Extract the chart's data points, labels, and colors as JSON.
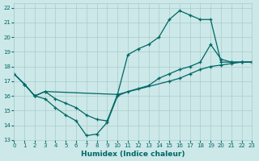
{
  "xlabel": "Humidex (Indice chaleur)",
  "bg_color": "#cce8e8",
  "grid_color": "#aacccc",
  "line_color": "#006666",
  "xlim": [
    0,
    23
  ],
  "ylim": [
    13,
    22.3
  ],
  "xticks": [
    0,
    1,
    2,
    3,
    4,
    5,
    6,
    7,
    8,
    9,
    10,
    11,
    12,
    13,
    14,
    15,
    16,
    17,
    18,
    19,
    20,
    21,
    22,
    23
  ],
  "yticks": [
    13,
    14,
    15,
    16,
    17,
    18,
    19,
    20,
    21,
    22
  ],
  "series": [
    {
      "x": [
        0,
        1,
        2,
        3,
        4,
        5,
        6,
        7,
        8,
        9,
        10,
        11,
        12,
        13,
        14,
        15,
        16,
        17,
        18,
        19,
        20,
        21,
        22,
        23
      ],
      "y": [
        17.5,
        16.8,
        16.0,
        15.8,
        15.2,
        14.7,
        14.3,
        13.3,
        13.4,
        14.2,
        16.0,
        16.3,
        16.5,
        16.7,
        17.2,
        17.5,
        17.8,
        18.0,
        18.3,
        19.5,
        18.5,
        18.3,
        18.3,
        18.3
      ]
    },
    {
      "x": [
        0,
        1,
        2,
        3,
        4,
        5,
        6,
        7,
        8,
        9,
        10,
        11,
        12,
        13,
        14,
        15,
        16,
        17,
        18,
        19,
        20,
        21,
        22,
        23
      ],
      "y": [
        17.5,
        16.8,
        16.0,
        16.3,
        15.8,
        15.5,
        15.2,
        14.7,
        14.4,
        14.3,
        16.1,
        18.8,
        19.2,
        19.5,
        20.0,
        21.2,
        21.8,
        21.5,
        21.2,
        21.2,
        18.3,
        18.3,
        18.3,
        18.3
      ]
    },
    {
      "x": [
        0,
        1,
        2,
        3,
        10,
        15,
        16,
        17,
        18,
        19,
        20,
        21,
        22,
        23
      ],
      "y": [
        17.5,
        16.8,
        16.0,
        16.3,
        16.1,
        17.0,
        17.2,
        17.5,
        17.8,
        18.0,
        18.1,
        18.2,
        18.3,
        18.3
      ]
    }
  ]
}
